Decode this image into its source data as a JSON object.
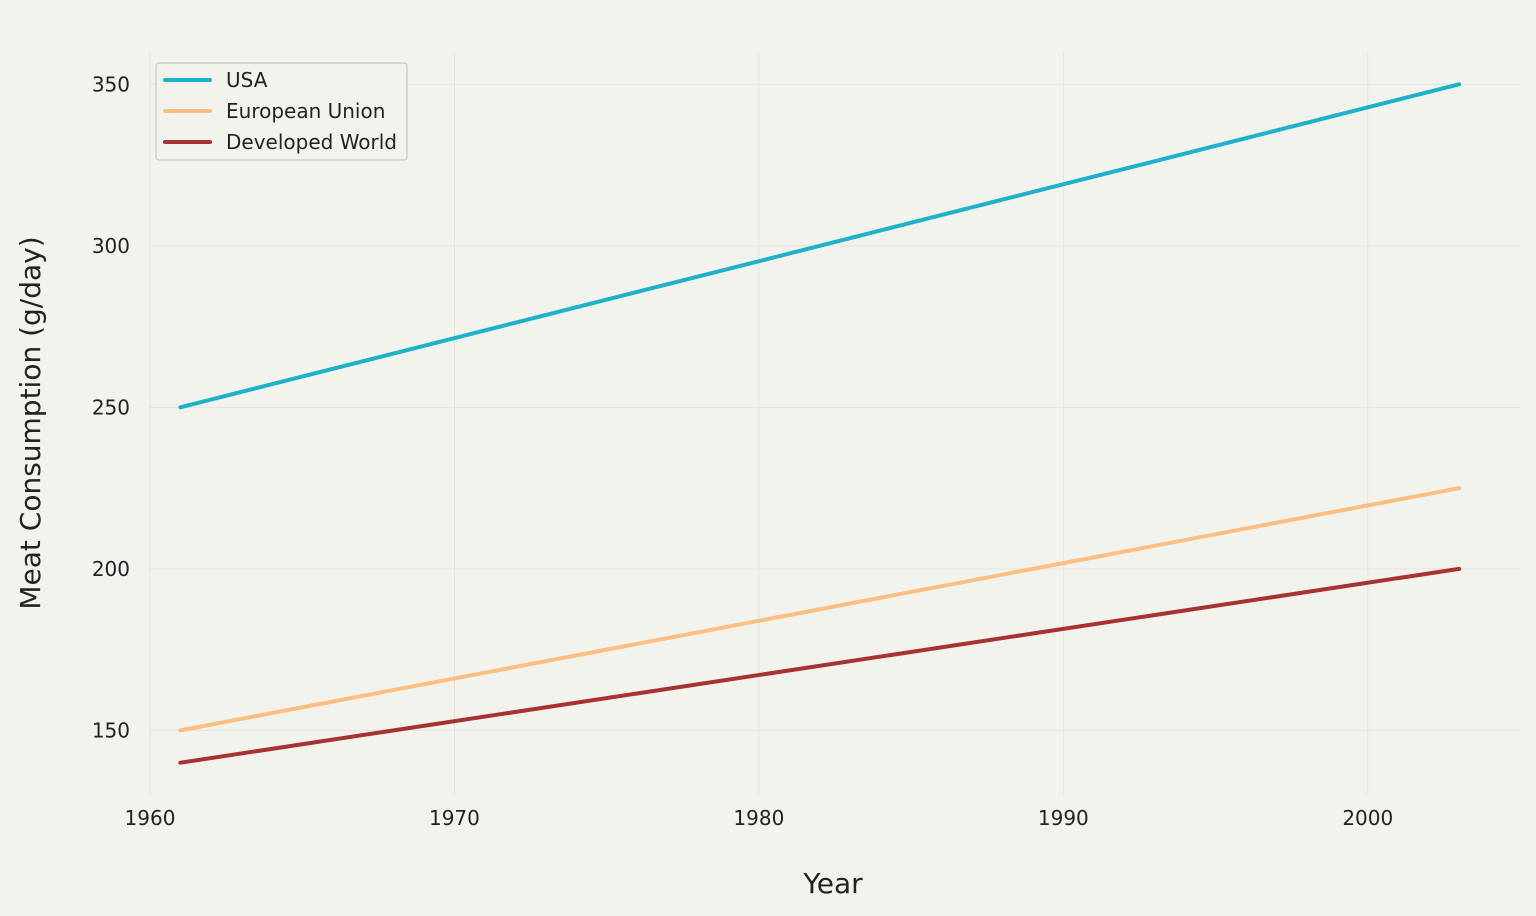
{
  "chart_data": {
    "type": "line",
    "title": "",
    "xlabel": "Year",
    "ylabel": "Meat Consumption (g/day)",
    "xlim": [
      1960,
      2005
    ],
    "ylim": [
      130,
      360
    ],
    "x_ticks": [
      1960,
      1970,
      1980,
      1990,
      2000
    ],
    "y_ticks": [
      150,
      200,
      250,
      300,
      350
    ],
    "grid": true,
    "legend_position": "top-left",
    "series": [
      {
        "name": "USA",
        "color": "#1eb1c8",
        "x": [
          1961,
          2003
        ],
        "y": [
          250,
          350
        ]
      },
      {
        "name": "European Union",
        "color": "#fbbf84",
        "x": [
          1961,
          2003
        ],
        "y": [
          150,
          225
        ]
      },
      {
        "name": "Developed World",
        "color": "#a83232",
        "x": [
          1961,
          2003
        ],
        "y": [
          140,
          200
        ]
      }
    ]
  }
}
